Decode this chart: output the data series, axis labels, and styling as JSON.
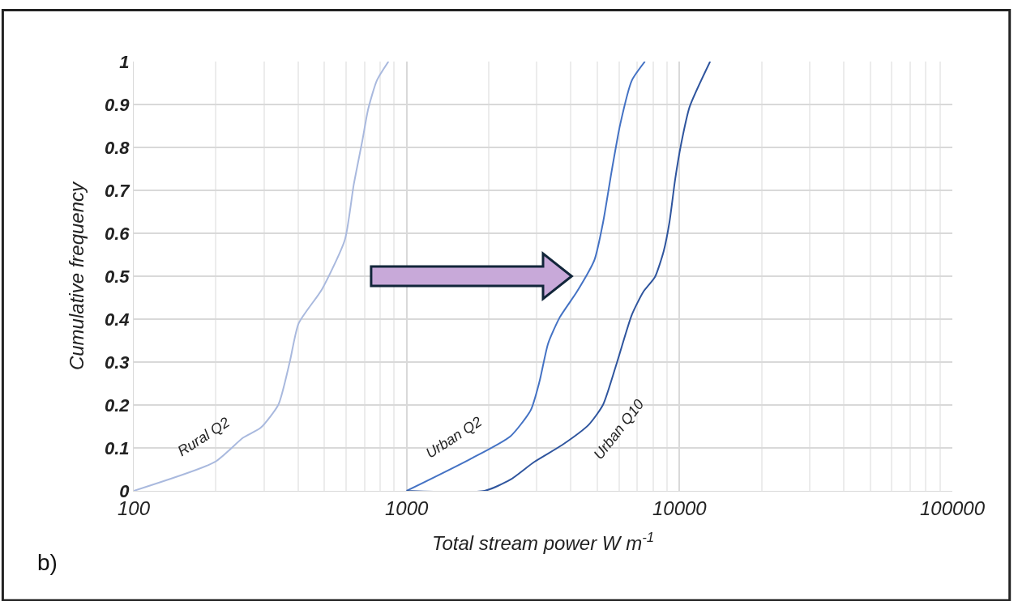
{
  "chart_data": {
    "type": "line",
    "xlabel": "Total stream power W m$^{-1}$",
    "ylabel": "Cumulative frequency",
    "log": "x",
    "xlim": [
      100,
      100000
    ],
    "xticks": [
      100,
      1000,
      10000,
      100000
    ],
    "ylim": [
      0,
      1
    ],
    "yticks": [
      0,
      0.1,
      0.2,
      0.3,
      0.4,
      0.5,
      0.6,
      0.7,
      0.8,
      0.9,
      1
    ],
    "grid": true,
    "legend": false,
    "marker": "none",
    "line_style": "solid",
    "series": [
      {
        "name": "Rural Q2",
        "color": "#a9b9de",
        "x": [
          100,
          198,
          252,
          292,
          339,
          373,
          402,
          490,
          594,
          640,
          688,
          723,
          778,
          858
        ],
        "values": [
          0,
          0.067,
          0.124,
          0.147,
          0.201,
          0.3,
          0.39,
          0.47,
          0.585,
          0.713,
          0.815,
          0.889,
          0.956,
          1.0
        ]
      },
      {
        "name": "Urban Q2",
        "color": "#4472c4",
        "x": [
          1000,
          1710,
          2400,
          2850,
          3070,
          3300,
          3640,
          4210,
          4880,
          5250,
          5650,
          6070,
          6690,
          7470
        ],
        "values": [
          0,
          0.074,
          0.127,
          0.188,
          0.255,
          0.343,
          0.404,
          0.464,
          0.538,
          0.626,
          0.747,
          0.855,
          0.956,
          1.0
        ]
      },
      {
        "name": "Urban Q10",
        "color": "#2f559e",
        "x": [
          1000,
          1930,
          2400,
          2930,
          3720,
          4650,
          5250,
          5920,
          6690,
          7380,
          8130,
          8750,
          9190,
          9650,
          10140,
          10900,
          12950
        ],
        "values": [
          0,
          0,
          0.026,
          0.067,
          0.107,
          0.154,
          0.201,
          0.302,
          0.41,
          0.464,
          0.498,
          0.558,
          0.626,
          0.727,
          0.808,
          0.895,
          1.0
        ]
      }
    ],
    "annotations": [
      "b)"
    ]
  }
}
